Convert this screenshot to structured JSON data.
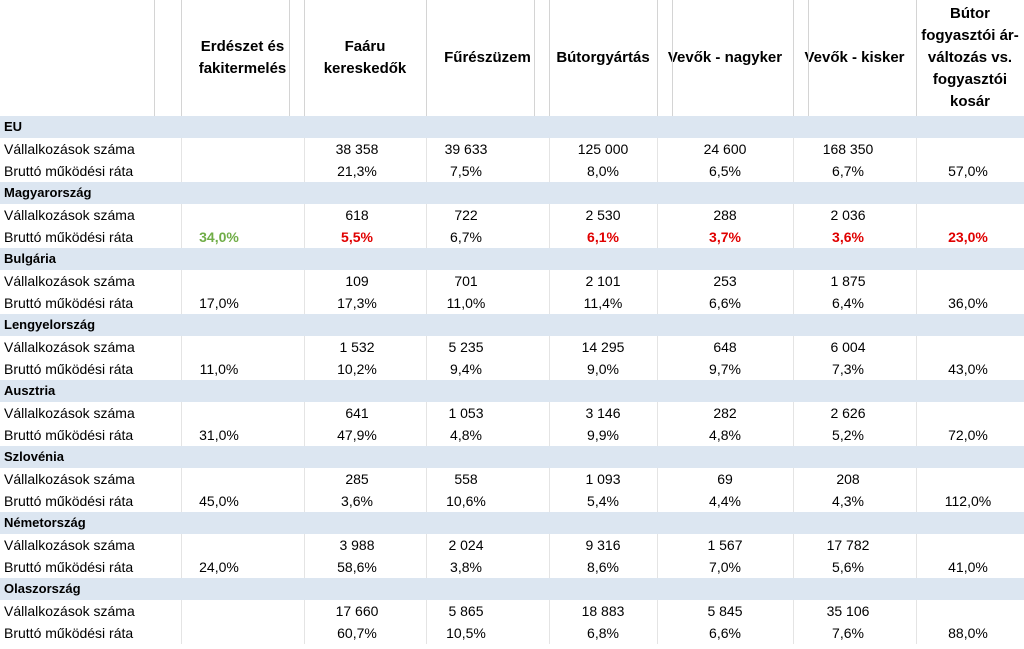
{
  "headers": [
    "",
    "",
    "Erdészet és fakitermelés",
    "Faáru kereskedők",
    "Fűrészüzem",
    "Bútorgyártás",
    "Vevők - nagyker",
    "Vevők - kisker",
    "Bútor fogyasztói ár-változás vs. fogyasztói kosár"
  ],
  "colors": {
    "country_band": "#dce6f1",
    "highlight_green": "#70ad47",
    "highlight_red": "#e00000"
  },
  "countries": [
    {
      "name": "EU",
      "rows": [
        {
          "label": "Vállalkozások száma",
          "values": [
            "",
            "38 358",
            "39 633",
            "125 000",
            "24 600",
            "168 350",
            ""
          ],
          "styles": [
            "",
            "",
            "",
            "",
            "",
            "",
            ""
          ]
        },
        {
          "label": "Bruttó működési ráta",
          "values": [
            "",
            "21,3%",
            "7,5%",
            "8,0%",
            "6,5%",
            "6,7%",
            "57,0%"
          ],
          "styles": [
            "",
            "",
            "",
            "",
            "",
            "",
            ""
          ]
        }
      ]
    },
    {
      "name": "Magyarország",
      "rows": [
        {
          "label": "Vállalkozások száma",
          "values": [
            "",
            "618",
            "722",
            "2 530",
            "288",
            "2 036",
            ""
          ],
          "styles": [
            "",
            "",
            "",
            "",
            "",
            "",
            ""
          ]
        },
        {
          "label": "Bruttó működési ráta",
          "values": [
            "34,0%",
            "5,5%",
            "6,7%",
            "6,1%",
            "3,7%",
            "3,6%",
            "23,0%"
          ],
          "styles": [
            "green",
            "red",
            "",
            "red",
            "red",
            "red",
            "red"
          ]
        }
      ]
    },
    {
      "name": "Bulgária",
      "rows": [
        {
          "label": "Vállalkozások száma",
          "values": [
            "",
            "109",
            "701",
            "2 101",
            "253",
            "1 875",
            ""
          ],
          "styles": [
            "",
            "",
            "",
            "",
            "",
            "",
            ""
          ]
        },
        {
          "label": "Bruttó működési ráta",
          "values": [
            "17,0%",
            "17,3%",
            "11,0%",
            "11,4%",
            "6,6%",
            "6,4%",
            "36,0%"
          ],
          "styles": [
            "",
            "",
            "",
            "",
            "",
            "",
            ""
          ]
        }
      ]
    },
    {
      "name": "Lengyelország",
      "rows": [
        {
          "label": "Vállalkozások száma",
          "values": [
            "",
            "1 532",
            "5 235",
            "14 295",
            "648",
            "6 004",
            ""
          ],
          "styles": [
            "",
            "",
            "",
            "",
            "",
            "",
            ""
          ]
        },
        {
          "label": "Bruttó működési ráta",
          "values": [
            "11,0%",
            "10,2%",
            "9,4%",
            "9,0%",
            "9,7%",
            "7,3%",
            "43,0%"
          ],
          "styles": [
            "",
            "",
            "",
            "",
            "",
            "",
            ""
          ]
        }
      ]
    },
    {
      "name": "Ausztria",
      "rows": [
        {
          "label": "Vállalkozások száma",
          "values": [
            "",
            "641",
            "1 053",
            "3 146",
            "282",
            "2 626",
            ""
          ],
          "styles": [
            "",
            "",
            "",
            "",
            "",
            "",
            ""
          ]
        },
        {
          "label": "Bruttó működési ráta",
          "values": [
            "31,0%",
            "47,9%",
            "4,8%",
            "9,9%",
            "4,8%",
            "5,2%",
            "72,0%"
          ],
          "styles": [
            "",
            "",
            "",
            "",
            "",
            "",
            ""
          ]
        }
      ]
    },
    {
      "name": "Szlovénia",
      "rows": [
        {
          "label": "Vállalkozások száma",
          "values": [
            "",
            "285",
            "558",
            "1 093",
            "69",
            "208",
            ""
          ],
          "styles": [
            "",
            "",
            "",
            "",
            "",
            "",
            ""
          ]
        },
        {
          "label": "Bruttó működési ráta",
          "values": [
            "45,0%",
            "3,6%",
            "10,6%",
            "5,4%",
            "4,4%",
            "4,3%",
            "112,0%"
          ],
          "styles": [
            "",
            "",
            "",
            "",
            "",
            "",
            ""
          ]
        }
      ]
    },
    {
      "name": "Németország",
      "rows": [
        {
          "label": "Vállalkozások száma",
          "values": [
            "",
            "3 988",
            "2 024",
            "9 316",
            "1 567",
            "17 782",
            ""
          ],
          "styles": [
            "",
            "",
            "",
            "",
            "",
            "",
            ""
          ]
        },
        {
          "label": "Bruttó működési ráta",
          "values": [
            "24,0%",
            "58,6%",
            "3,8%",
            "8,6%",
            "7,0%",
            "5,6%",
            "41,0%"
          ],
          "styles": [
            "",
            "",
            "",
            "",
            "",
            "",
            ""
          ]
        }
      ]
    },
    {
      "name": "Olaszország",
      "rows": [
        {
          "label": "Vállalkozások száma",
          "values": [
            "",
            "17 660",
            "5 865",
            "18 883",
            "5 845",
            "35 106",
            ""
          ],
          "styles": [
            "",
            "",
            "",
            "",
            "",
            "",
            ""
          ]
        },
        {
          "label": "Bruttó működési ráta",
          "values": [
            "",
            "60,7%",
            "10,5%",
            "6,8%",
            "6,6%",
            "7,6%",
            "88,0%"
          ],
          "styles": [
            "",
            "",
            "",
            "",
            "",
            "",
            ""
          ]
        }
      ]
    }
  ]
}
